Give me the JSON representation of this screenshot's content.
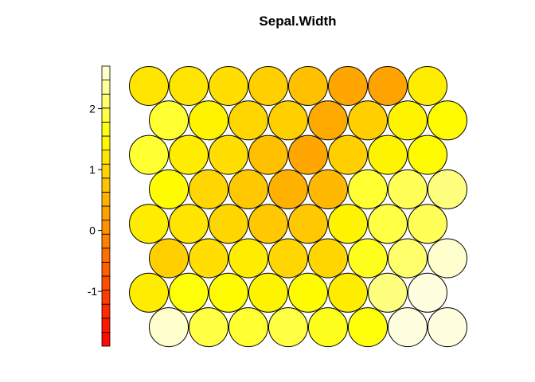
{
  "chart_data": {
    "type": "heatmap",
    "title": "Sepal.Width",
    "grid": "hexagonal",
    "columns": 8,
    "rows": 8,
    "rows_top_to_bottom": [
      [
        1.2,
        1.2,
        1.1,
        0.9,
        0.7,
        0.35,
        0.3,
        1.3
      ],
      [
        1.8,
        1.4,
        1.0,
        0.9,
        0.4,
        0.9,
        1.4,
        1.5
      ],
      [
        1.8,
        1.3,
        1.1,
        0.7,
        0.35,
        0.9,
        1.4,
        1.5
      ],
      [
        1.5,
        1.0,
        0.8,
        0.5,
        0.6,
        1.8,
        2.0,
        2.2
      ],
      [
        1.3,
        1.2,
        1.0,
        0.8,
        0.8,
        1.4,
        1.9,
        2.0
      ],
      [
        0.9,
        1.1,
        1.3,
        1.0,
        1.0,
        1.7,
        2.1,
        2.6
      ],
      [
        1.3,
        1.6,
        1.5,
        1.4,
        1.5,
        1.3,
        2.2,
        2.9
      ],
      [
        2.6,
        1.9,
        1.8,
        1.9,
        1.7,
        1.6,
        3.1,
        3.5
      ]
    ],
    "legend_ticks": [
      "2",
      "1",
      "0",
      "-1"
    ],
    "legend_tick_values": [
      2,
      1,
      0,
      -1
    ],
    "colorbar_range": [
      -1.9,
      2.7
    ],
    "colorbar_bins": 20,
    "palette": "heat.colors",
    "palette_endpoints": [
      "#FF0000",
      "#FFFFE0"
    ]
  }
}
